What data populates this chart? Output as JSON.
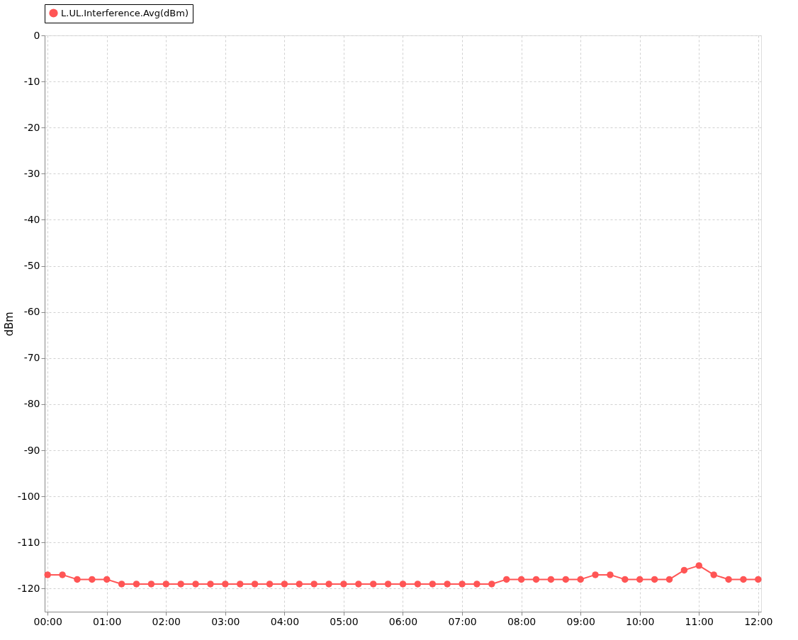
{
  "chart_data": {
    "type": "line",
    "ylabel": "dBm",
    "x": [
      0,
      0.25,
      0.5,
      0.75,
      1,
      1.25,
      1.5,
      1.75,
      2,
      2.25,
      2.5,
      2.75,
      3,
      3.25,
      3.5,
      3.75,
      4,
      4.25,
      4.5,
      4.75,
      5,
      5.25,
      5.5,
      5.75,
      6,
      6.25,
      6.5,
      6.75,
      7,
      7.25,
      7.5,
      7.75,
      8,
      8.25,
      8.5,
      8.75,
      9,
      9.25,
      9.5,
      9.75,
      10,
      10.25,
      10.5,
      10.75,
      11,
      11.25,
      11.5,
      11.75,
      12
    ],
    "series": [
      {
        "name": "L.UL.Interference.Avg(dBm)",
        "color": "#ff5555",
        "values": [
          -117,
          -117,
          -118,
          -118,
          -118,
          -119,
          -119,
          -119,
          -119,
          -119,
          -119,
          -119,
          -119,
          -119,
          -119,
          -119,
          -119,
          -119,
          -119,
          -119,
          -119,
          -119,
          -119,
          -119,
          -119,
          -119,
          -119,
          -119,
          -119,
          -119,
          -119,
          -118,
          -118,
          -118,
          -118,
          -118,
          -118,
          -117,
          -117,
          -118,
          -118,
          -118,
          -118,
          -116,
          -115,
          -117,
          -118,
          -118,
          -118
        ]
      }
    ],
    "xlim": [
      -0.05,
      12.05
    ],
    "xticks": [
      {
        "value": 0,
        "label": "00:00"
      },
      {
        "value": 1,
        "label": "01:00"
      },
      {
        "value": 2,
        "label": "02:00"
      },
      {
        "value": 3,
        "label": "03:00"
      },
      {
        "value": 4,
        "label": "04:00"
      },
      {
        "value": 5,
        "label": "05:00"
      },
      {
        "value": 6,
        "label": "06:00"
      },
      {
        "value": 7,
        "label": "07:00"
      },
      {
        "value": 8,
        "label": "08:00"
      },
      {
        "value": 9,
        "label": "09:00"
      },
      {
        "value": 10,
        "label": "10:00"
      },
      {
        "value": 11,
        "label": "11:00"
      },
      {
        "value": 12,
        "label": "12:00"
      }
    ],
    "ylim": [
      -125,
      0
    ],
    "yticks": [
      -120,
      -110,
      -100,
      -90,
      -80,
      -70,
      -60,
      -50,
      -40,
      -30,
      -20,
      -10,
      0
    ],
    "grid": true,
    "legend": "top",
    "marker": "circle",
    "line_style": "solid"
  }
}
